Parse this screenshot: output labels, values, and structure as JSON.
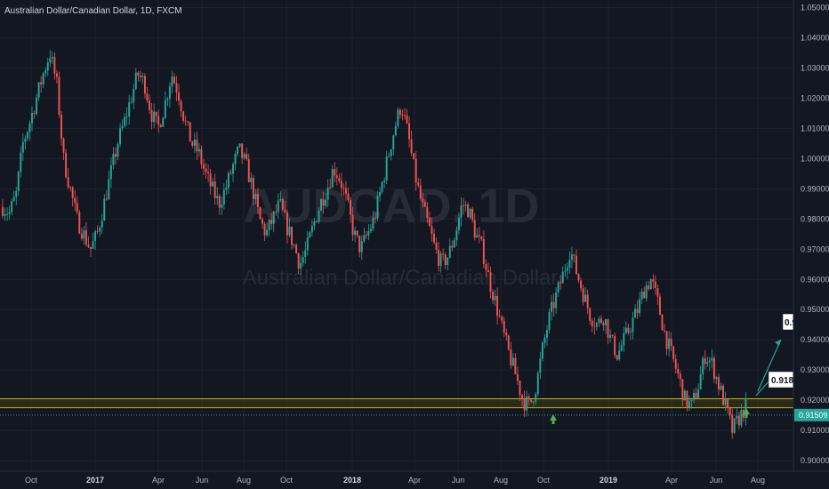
{
  "chart_data": {
    "type": "candlestick",
    "title": "Australian Dollar/Canadian Dollar, 1D, FXCM",
    "watermark_symbol": "AUDCAD, 1D",
    "watermark_name": "Australian Dollar/Canadian Dollar",
    "ylim": [
      0.8965,
      1.0525
    ],
    "y_ticks": [
      "1.05000",
      "1.04000",
      "1.03000",
      "1.02000",
      "1.01000",
      "1.00000",
      "0.99000",
      "0.98000",
      "0.97000",
      "0.96000",
      "0.95000",
      "0.94000",
      "0.93000",
      "0.92000",
      "0.91000",
      "0.90000"
    ],
    "x_ticks": [
      {
        "label": "Oct",
        "year": false
      },
      {
        "label": "2017",
        "year": true
      },
      {
        "label": "Apr",
        "year": false
      },
      {
        "label": "Jun",
        "year": false
      },
      {
        "label": "Aug",
        "year": false
      },
      {
        "label": "Oct",
        "year": false
      },
      {
        "label": "2018",
        "year": true
      },
      {
        "label": "Apr",
        "year": false
      },
      {
        "label": "Jun",
        "year": false
      },
      {
        "label": "Aug",
        "year": false
      },
      {
        "label": "Oct",
        "year": false
      },
      {
        "label": "2019",
        "year": true
      },
      {
        "label": "Apr",
        "year": false
      },
      {
        "label": "Jun",
        "year": false
      },
      {
        "label": "Aug",
        "year": false
      }
    ],
    "price_path": [
      0.984,
      0.982,
      0.988,
      1.005,
      1.012,
      1.02,
      1.028,
      1.035,
      1.025,
      1.0,
      0.99,
      0.98,
      0.975,
      0.97,
      0.975,
      0.985,
      0.995,
      1.005,
      1.012,
      1.02,
      1.028,
      1.025,
      1.015,
      1.01,
      1.018,
      1.028,
      1.022,
      1.012,
      1.005,
      1.002,
      0.995,
      0.99,
      0.985,
      0.99,
      0.997,
      1.003,
      0.998,
      0.99,
      0.98,
      0.975,
      0.98,
      0.985,
      0.978,
      0.972,
      0.965,
      0.97,
      0.978,
      0.985,
      0.99,
      0.997,
      0.993,
      0.985,
      0.975,
      0.97,
      0.975,
      0.98,
      0.99,
      1.0,
      1.01,
      1.018,
      1.008,
      0.995,
      0.985,
      0.978,
      0.97,
      0.965,
      0.968,
      0.975,
      0.985,
      0.983,
      0.975,
      0.97,
      0.96,
      0.952,
      0.943,
      0.935,
      0.928,
      0.92,
      0.918,
      0.925,
      0.938,
      0.948,
      0.955,
      0.962,
      0.97,
      0.962,
      0.955,
      0.948,
      0.945,
      0.948,
      0.94,
      0.935,
      0.94,
      0.945,
      0.95,
      0.957,
      0.96,
      0.952,
      0.942,
      0.935,
      0.928,
      0.92,
      0.918,
      0.925,
      0.935,
      0.932,
      0.925,
      0.918,
      0.91,
      0.914,
      0.918
    ],
    "support_zone": {
      "top": 0.9205,
      "bottom": 0.9175
    },
    "current_price": "0.91509",
    "target_label": "0.91825",
    "projection_label": "0.9...",
    "colors": {
      "up": "#26a69a",
      "down": "#ef5350",
      "zone": "#c8b400",
      "price_tag": "#26a69a",
      "arrow_marker": "#4caf50",
      "projection": "#26a69a"
    }
  }
}
